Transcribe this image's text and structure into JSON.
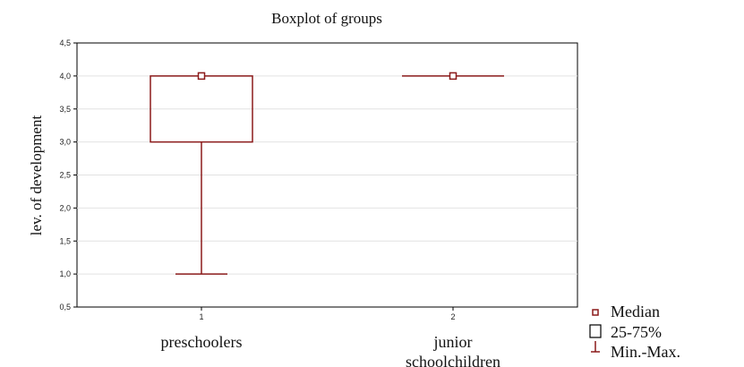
{
  "chart_data": {
    "type": "boxplot",
    "title": "Boxplot of groups",
    "ylabel": "lev. of development",
    "xlabel": "",
    "ylim": [
      0.5,
      4.5
    ],
    "yticks": [
      "0,5",
      "1,0",
      "1,5",
      "2,0",
      "2,5",
      "3,0",
      "3,5",
      "4,0",
      "4,5"
    ],
    "ytick_values": [
      0.5,
      1.0,
      1.5,
      2.0,
      2.5,
      3.0,
      3.5,
      4.0,
      4.5
    ],
    "grid": true,
    "legend_position": "bottom-right",
    "color": "#8b1a1a",
    "categories": [
      {
        "tick": "1",
        "name_lines": [
          "preschoolers"
        ],
        "min": 1.0,
        "q1": 3.0,
        "median": 4.0,
        "q3": 4.0,
        "max": 4.0
      },
      {
        "tick": "2",
        "name_lines": [
          "junior",
          "schoolchildren"
        ],
        "min": 4.0,
        "q1": 4.0,
        "median": 4.0,
        "q3": 4.0,
        "max": 4.0
      }
    ],
    "legend": [
      {
        "label": "Median",
        "symbol": "small-square"
      },
      {
        "label": "25-75%",
        "symbol": "box"
      },
      {
        "label": "Min.-Max.",
        "symbol": "whisker"
      }
    ]
  }
}
